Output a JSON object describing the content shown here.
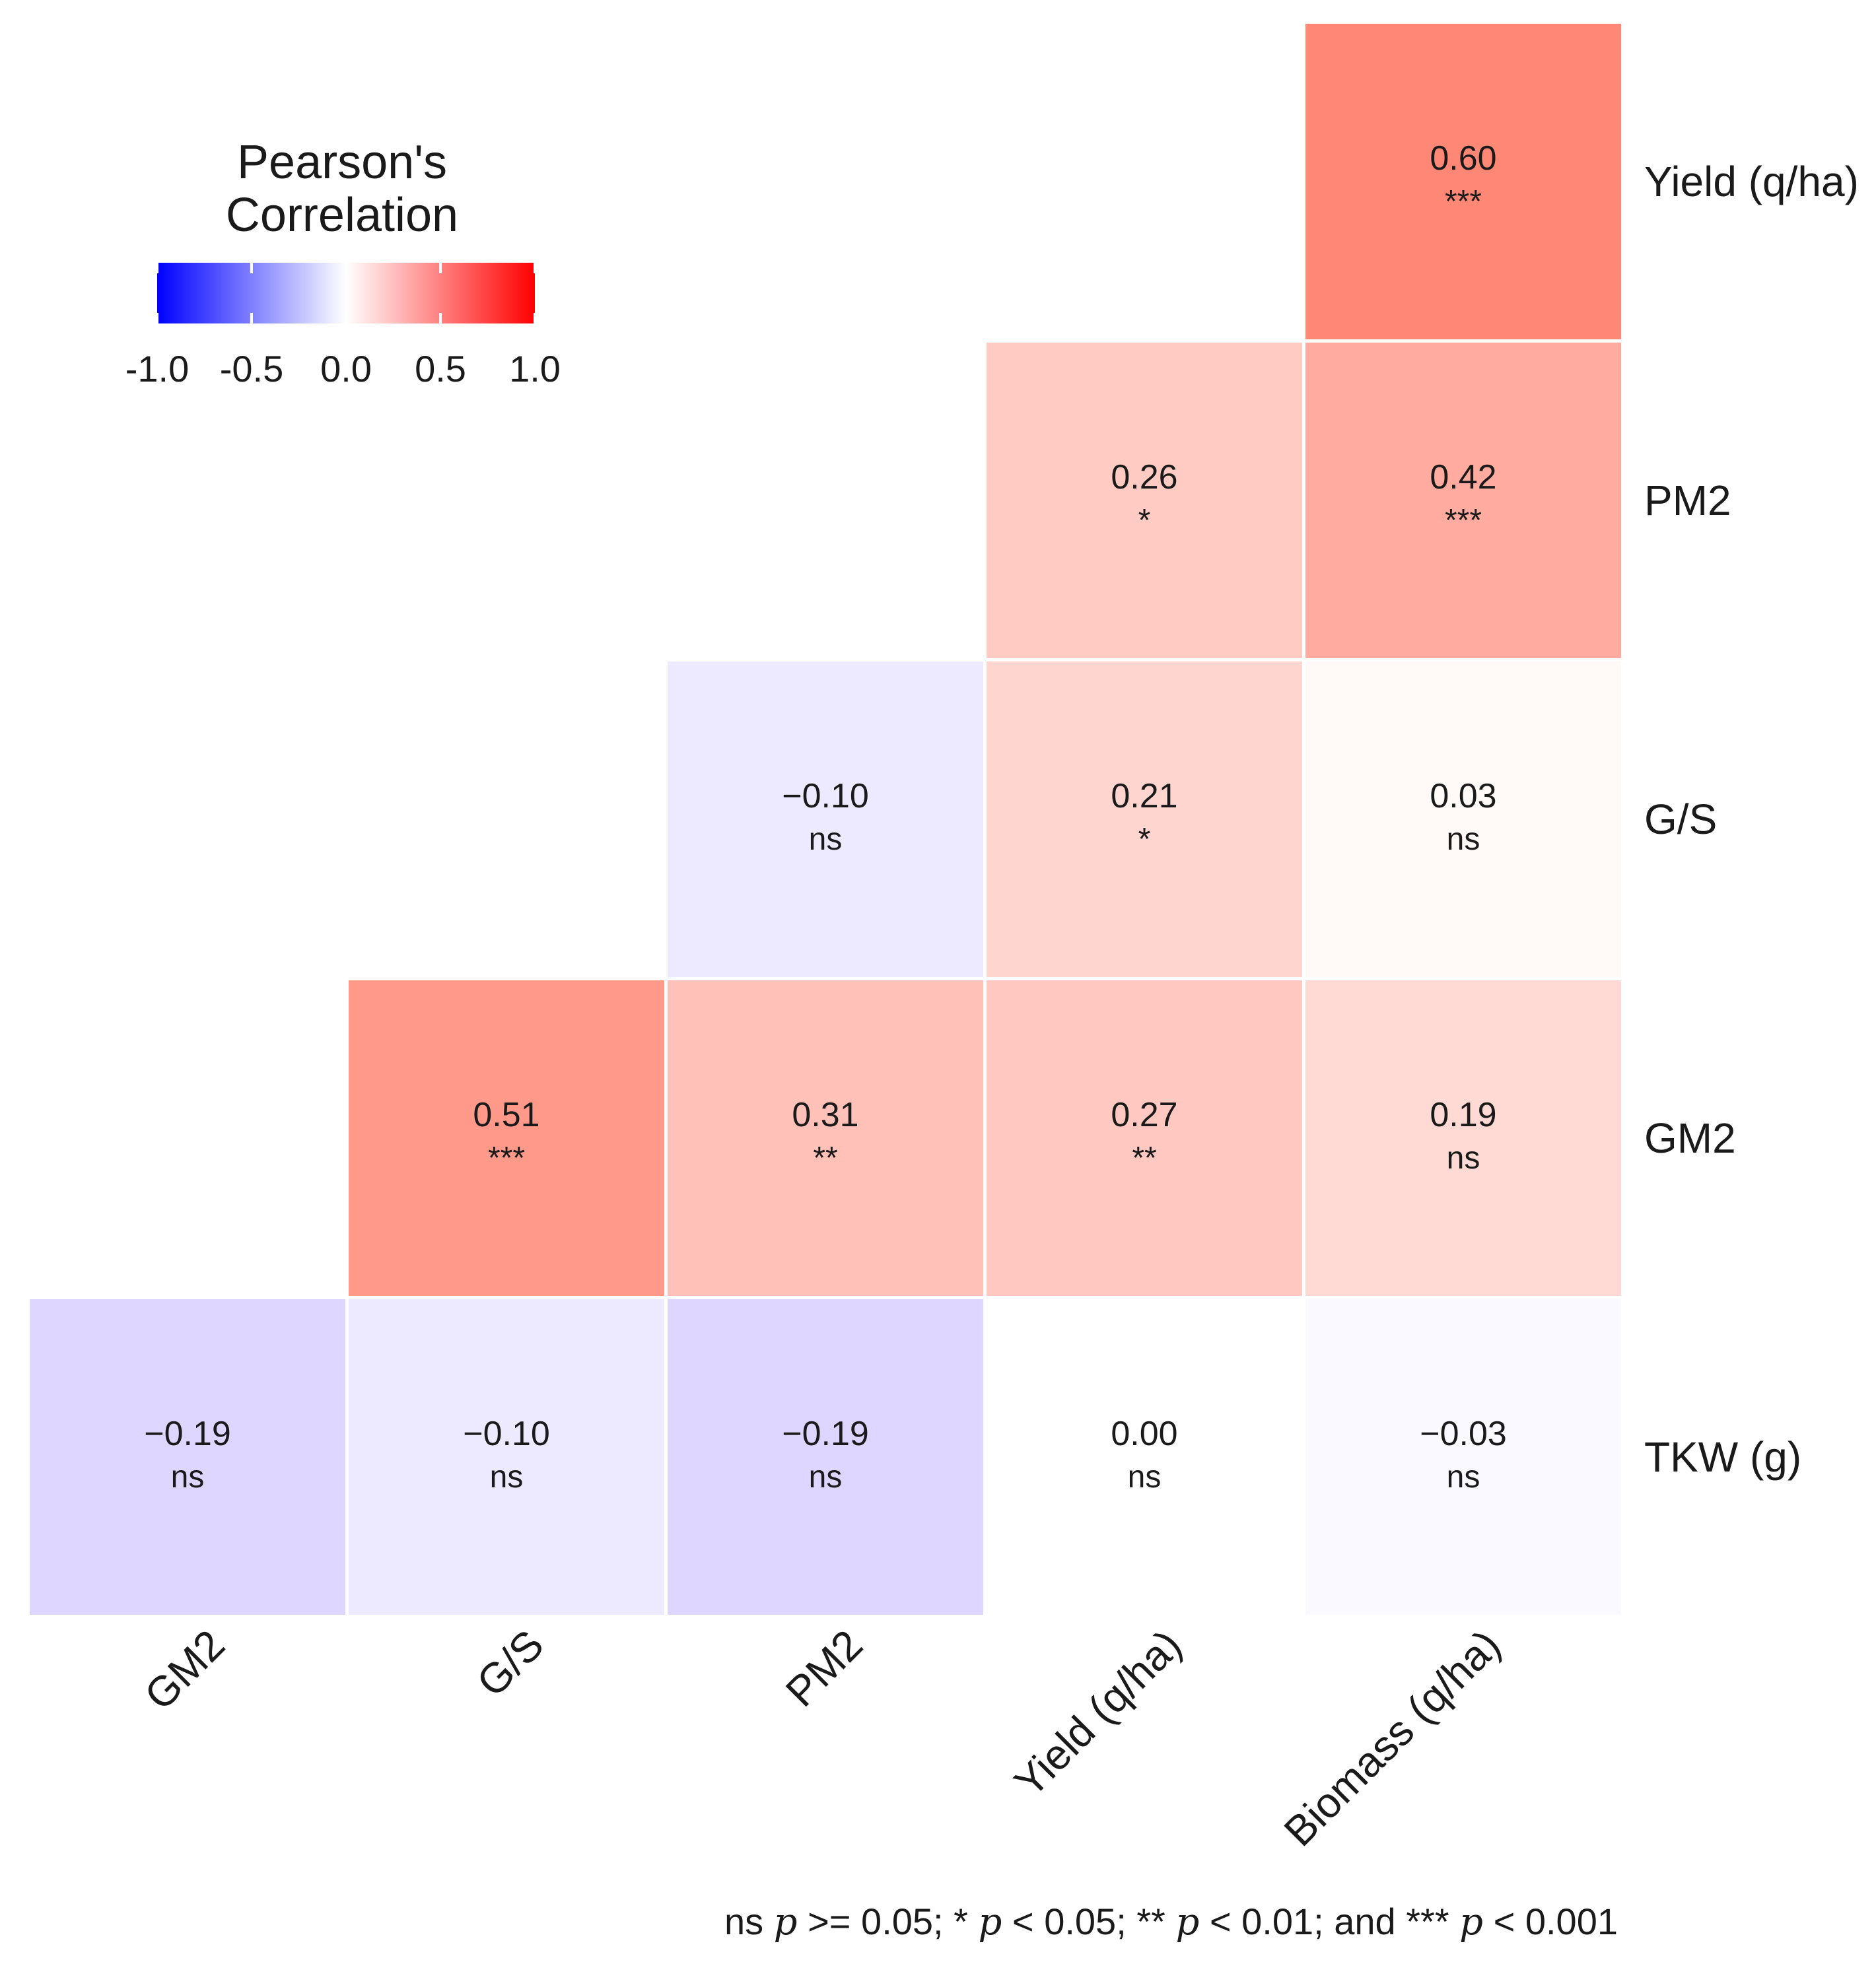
{
  "chart_data": {
    "type": "heatmap",
    "x_labels": [
      "GM2",
      "G/S",
      "PM2",
      "Yield (q/ha)",
      "Biomass (q/ha)"
    ],
    "y_labels": [
      "Yield (q/ha)",
      "PM2",
      "G/S",
      "GM2",
      "TKW (g)"
    ],
    "cells": [
      {
        "row": 0,
        "col": 4,
        "value": 0.6,
        "label": "0.60",
        "sig": "***"
      },
      {
        "row": 1,
        "col": 3,
        "value": 0.26,
        "label": "0.26",
        "sig": "*"
      },
      {
        "row": 1,
        "col": 4,
        "value": 0.42,
        "label": "0.42",
        "sig": "***"
      },
      {
        "row": 2,
        "col": 2,
        "value": -0.1,
        "label": "−0.10",
        "sig": "ns"
      },
      {
        "row": 2,
        "col": 3,
        "value": 0.21,
        "label": "0.21",
        "sig": "*"
      },
      {
        "row": 2,
        "col": 4,
        "value": 0.03,
        "label": "0.03",
        "sig": "ns"
      },
      {
        "row": 3,
        "col": 1,
        "value": 0.51,
        "label": "0.51",
        "sig": "***"
      },
      {
        "row": 3,
        "col": 2,
        "value": 0.31,
        "label": "0.31",
        "sig": "**"
      },
      {
        "row": 3,
        "col": 3,
        "value": 0.27,
        "label": "0.27",
        "sig": "**"
      },
      {
        "row": 3,
        "col": 4,
        "value": 0.19,
        "label": "0.19",
        "sig": "ns"
      },
      {
        "row": 4,
        "col": 0,
        "value": -0.19,
        "label": "−0.19",
        "sig": "ns"
      },
      {
        "row": 4,
        "col": 1,
        "value": -0.1,
        "label": "−0.10",
        "sig": "ns"
      },
      {
        "row": 4,
        "col": 2,
        "value": -0.19,
        "label": "−0.19",
        "sig": "ns"
      },
      {
        "row": 4,
        "col": 3,
        "value": 0.0,
        "label": "0.00",
        "sig": "ns"
      },
      {
        "row": 4,
        "col": 4,
        "value": -0.03,
        "label": "−0.03",
        "sig": "ns"
      }
    ],
    "legend": {
      "title_line1": "Pearson's",
      "title_line2": "Correlation",
      "range": [
        -1.0,
        1.0
      ],
      "ticks": [
        -1.0,
        -0.5,
        0.0,
        0.5,
        1.0
      ],
      "tick_labels": [
        "-1.0",
        "-0.5",
        "0.0",
        "0.5",
        "1.0"
      ],
      "low_color": "#0000ff",
      "mid_color": "#ffffff",
      "high_color": "#ff0000"
    },
    "caption_parts": [
      "ns ",
      "p",
      " >= 0.05; * ",
      "p",
      " < 0.05; ** ",
      "p",
      " < 0.01; and *** ",
      "p",
      " < 0.001"
    ]
  }
}
